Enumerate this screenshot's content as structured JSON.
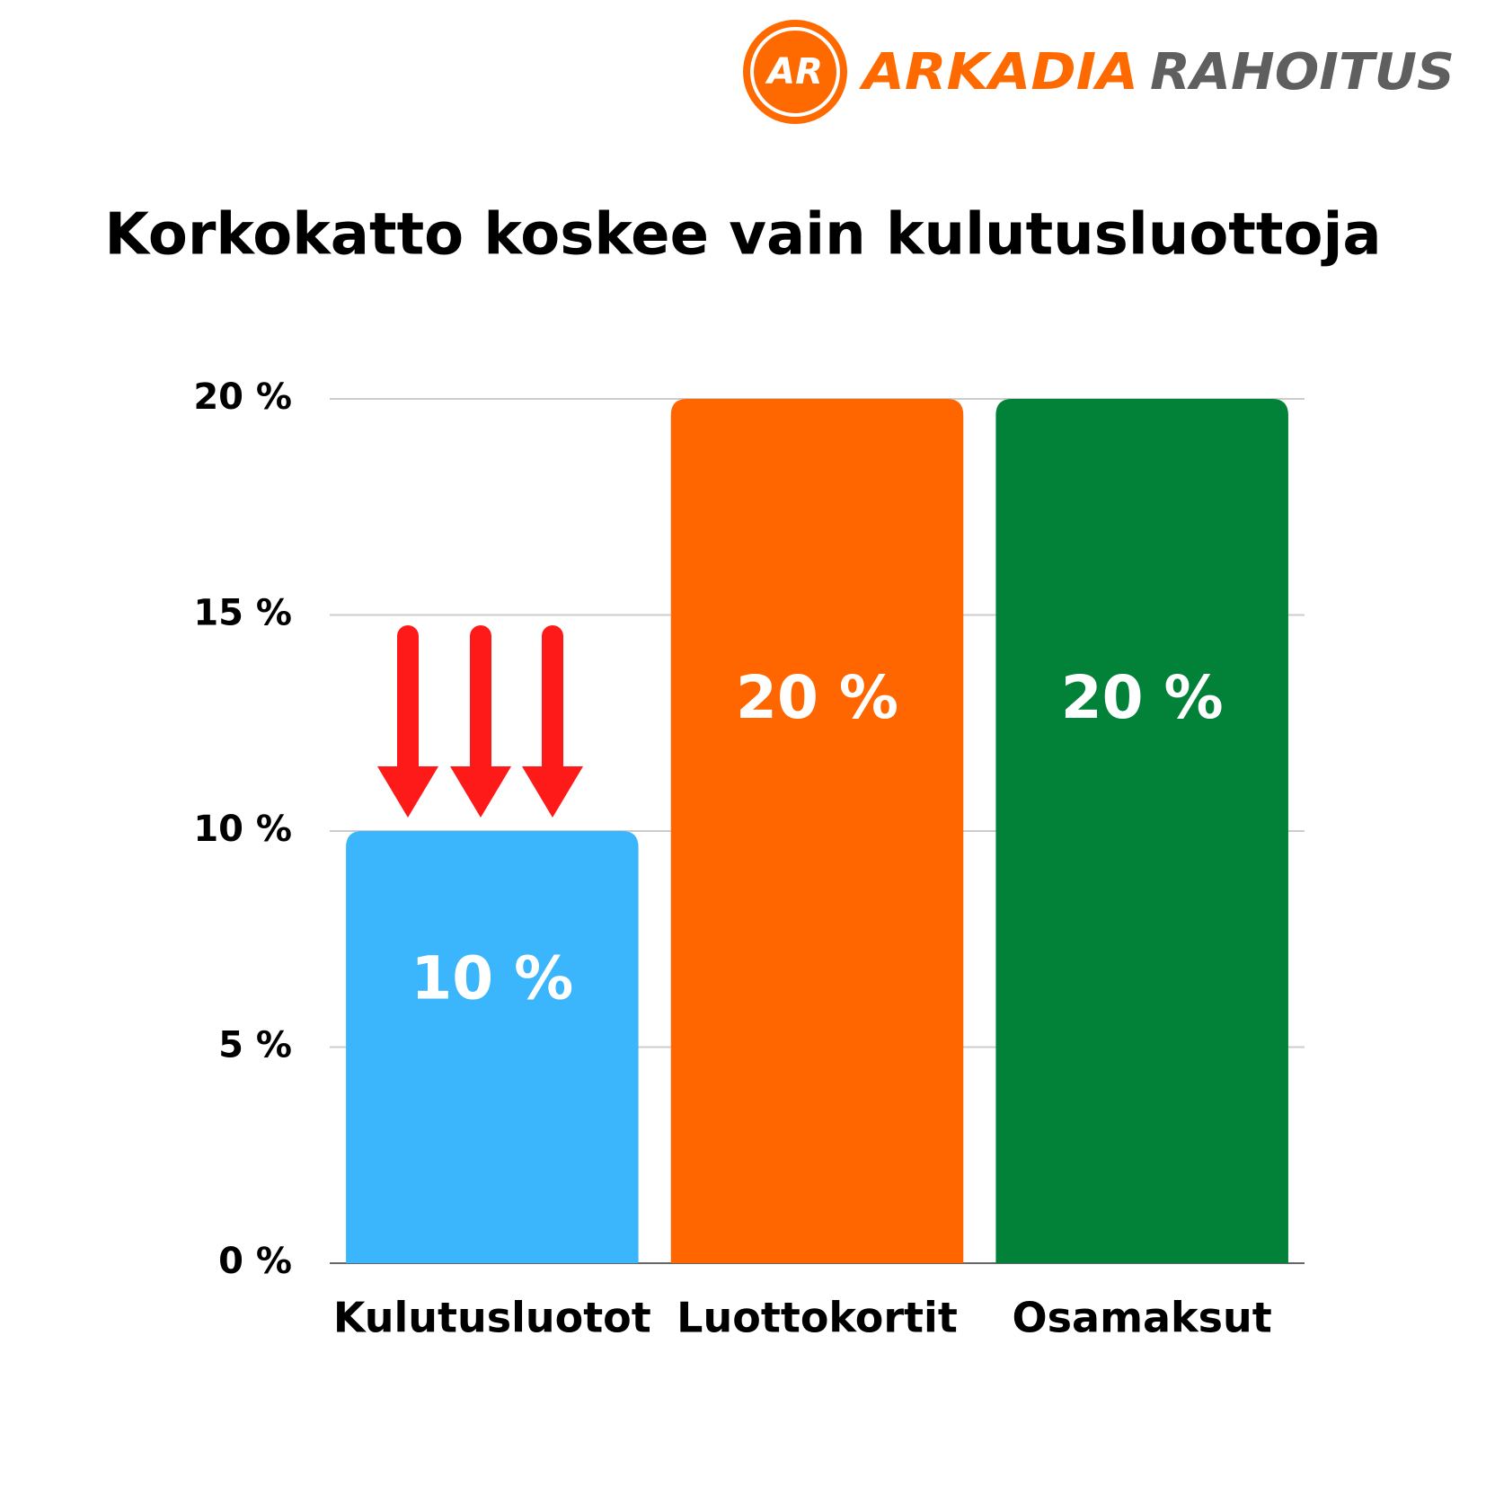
{
  "logo": {
    "mark": "AR",
    "name_first": "ARKADIA",
    "name_second": "RAHOITUS"
  },
  "chart_data": {
    "type": "bar",
    "title": "Korkokatto koskee vain kulutusluottoja",
    "categories": [
      "Kulutusluotot",
      "Luottokortit",
      "Osamaksut"
    ],
    "values": [
      10,
      20,
      20
    ],
    "value_labels": [
      "10 %",
      "20 %",
      "20 %"
    ],
    "colors": [
      "#3bb6fd",
      "#ff6600",
      "#028238"
    ],
    "ylim": [
      0,
      20
    ],
    "yticks": [
      {
        "value": 0,
        "label": "0 %"
      },
      {
        "value": 5,
        "label": "5 %"
      },
      {
        "value": 10,
        "label": "10 %"
      },
      {
        "value": 15,
        "label": "15 %"
      },
      {
        "value": 20,
        "label": "20 %"
      }
    ],
    "grid": true
  }
}
